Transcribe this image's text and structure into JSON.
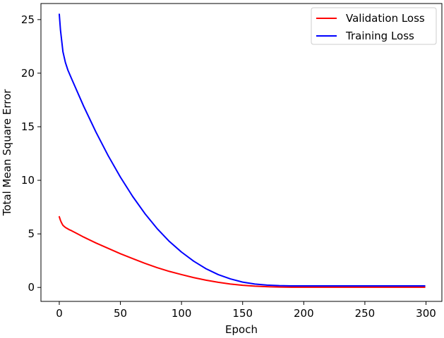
{
  "chart_data": {
    "type": "line",
    "title": "",
    "xlabel": "Epoch",
    "ylabel": "Total Mean Square Error",
    "xlim": [
      -15,
      313
    ],
    "ylim": [
      -1.3,
      26.5
    ],
    "xticks": [
      0,
      50,
      100,
      150,
      200,
      250,
      300
    ],
    "yticks": [
      0,
      5,
      10,
      15,
      20,
      25
    ],
    "xtick_labels": [
      "0",
      "50",
      "100",
      "150",
      "200",
      "250",
      "300"
    ],
    "ytick_labels": [
      "0",
      "5",
      "10",
      "15",
      "20",
      "25"
    ],
    "grid": false,
    "legend_position": "top-right",
    "series": [
      {
        "name": "Validation Loss",
        "color": "#ff0000",
        "x": [
          0,
          1,
          2,
          3,
          5,
          8,
          10,
          15,
          20,
          30,
          40,
          50,
          60,
          70,
          80,
          90,
          100,
          110,
          120,
          130,
          140,
          150,
          160,
          170,
          180,
          190,
          200,
          220,
          250,
          275,
          299
        ],
        "y": [
          6.6,
          6.25,
          6.0,
          5.8,
          5.6,
          5.4,
          5.3,
          5.0,
          4.7,
          4.15,
          3.65,
          3.15,
          2.7,
          2.25,
          1.85,
          1.5,
          1.2,
          0.92,
          0.68,
          0.48,
          0.32,
          0.2,
          0.12,
          0.07,
          0.04,
          0.02,
          0.02,
          0.02,
          0.02,
          0.02,
          0.02
        ]
      },
      {
        "name": "Training Loss",
        "color": "#0000ff",
        "x": [
          0,
          1,
          2,
          3,
          5,
          7,
          10,
          15,
          20,
          30,
          40,
          50,
          60,
          70,
          80,
          90,
          100,
          110,
          120,
          130,
          140,
          150,
          160,
          170,
          180,
          190,
          200,
          220,
          250,
          275,
          299
        ],
        "y": [
          25.5,
          24.0,
          23.0,
          22.0,
          21.0,
          20.3,
          19.5,
          18.2,
          16.9,
          14.5,
          12.3,
          10.3,
          8.5,
          6.9,
          5.5,
          4.3,
          3.3,
          2.45,
          1.75,
          1.2,
          0.8,
          0.5,
          0.32,
          0.22,
          0.17,
          0.15,
          0.15,
          0.15,
          0.15,
          0.15,
          0.15
        ]
      }
    ]
  }
}
